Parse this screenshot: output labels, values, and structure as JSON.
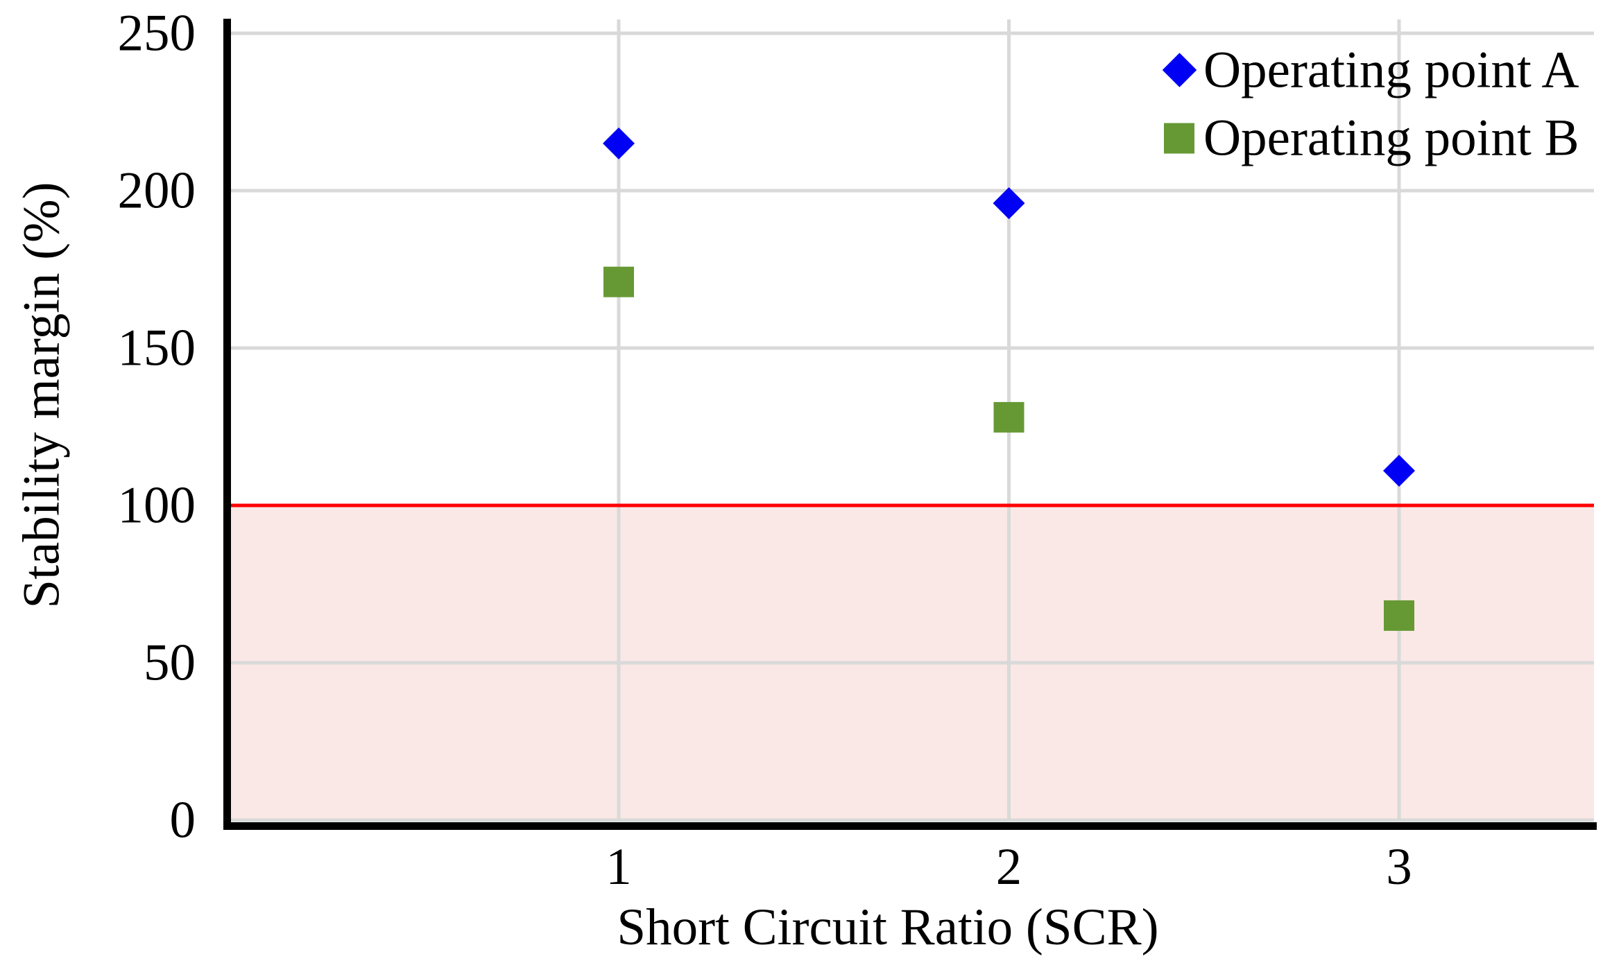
{
  "chart_data": {
    "type": "scatter",
    "xlabel": "Short Circuit Ratio (SCR)",
    "ylabel": "Stability margin (%)",
    "categories": [
      1,
      2,
      3
    ],
    "xticks": [
      "1",
      "2",
      "3"
    ],
    "yticks": [
      0,
      50,
      100,
      150,
      200,
      250
    ],
    "ylim": [
      0,
      254
    ],
    "grid": true,
    "legend_position": "top-right",
    "series": [
      {
        "name": "Operating point A",
        "marker": "diamond",
        "color": "#0000F5",
        "values": [
          215,
          196,
          111
        ]
      },
      {
        "name": "Operating point B",
        "marker": "square",
        "color": "#669933",
        "values": [
          171,
          128,
          65
        ]
      }
    ],
    "threshold": {
      "value": 100,
      "line_color": "#FF0000",
      "fill_below_color": "#FAE8E6"
    },
    "colors": {
      "gridline": "#D9D9D9",
      "axis": "#000000",
      "text": "#000000"
    }
  }
}
